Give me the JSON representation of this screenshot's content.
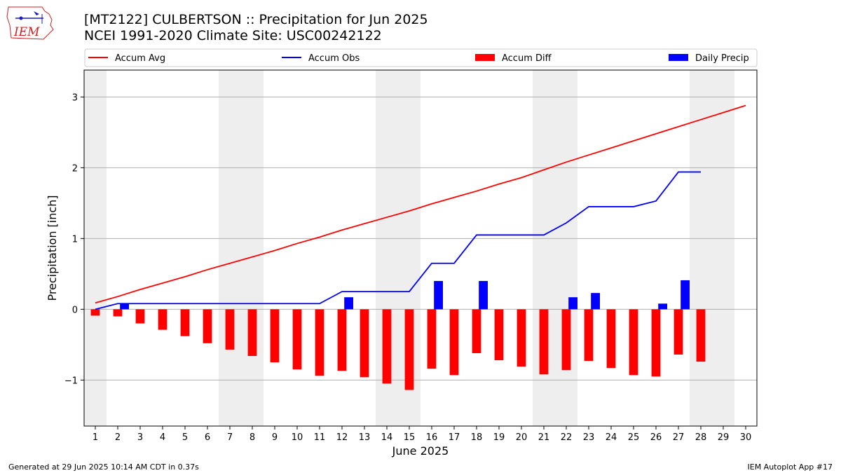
{
  "header": {
    "title_line1": "[MT2122] CULBERTSON :: Precipitation for Jun 2025",
    "title_line2": "NCEI 1991-2020 Climate Site: USC00242122",
    "logo_text": "IEM"
  },
  "footer": {
    "left": "Generated at 29 Jun 2025 10:14 AM CDT in 0.37s",
    "right": "IEM Autoplot App #17"
  },
  "colors": {
    "accum_avg": "#ff0000",
    "accum_obs": "#0000ff",
    "accum_diff": "#ff0000",
    "daily_precip": "#0000ff",
    "weekend_shade": "#eeeeee",
    "grid": "#b0b0b0",
    "logo": "#cc2222"
  },
  "chart_data": {
    "type": "bar",
    "xlabel": "June 2025",
    "ylabel": "Precipitation [inch]",
    "xlim": [
      0.5,
      30.5
    ],
    "ylim": [
      -1.65,
      3.38
    ],
    "xticks": [
      1,
      2,
      3,
      4,
      5,
      6,
      7,
      8,
      9,
      10,
      11,
      12,
      13,
      14,
      15,
      16,
      17,
      18,
      19,
      20,
      21,
      22,
      23,
      24,
      25,
      26,
      27,
      28,
      29,
      30
    ],
    "yticks": [
      -1,
      0,
      1,
      2,
      3
    ],
    "grid": "horizontal",
    "legend_placement": "top",
    "weekend_days": [
      1,
      7,
      8,
      14,
      15,
      21,
      22,
      28,
      29
    ],
    "series": [
      {
        "name": "Accum Avg",
        "kind": "line",
        "days": [
          1,
          2,
          3,
          4,
          5,
          6,
          7,
          8,
          9,
          10,
          11,
          12,
          13,
          14,
          15,
          16,
          17,
          18,
          19,
          20,
          21,
          22,
          23,
          24,
          25,
          26,
          27,
          28,
          29,
          30
        ],
        "values": [
          0.09,
          0.18,
          0.28,
          0.37,
          0.46,
          0.56,
          0.65,
          0.74,
          0.83,
          0.93,
          1.02,
          1.12,
          1.21,
          1.3,
          1.39,
          1.49,
          1.58,
          1.67,
          1.77,
          1.86,
          1.97,
          2.08,
          2.18,
          2.28,
          2.38,
          2.48,
          2.58,
          2.68,
          2.78,
          2.88
        ]
      },
      {
        "name": "Accum Obs",
        "kind": "line",
        "days": [
          1,
          2,
          3,
          4,
          5,
          6,
          7,
          8,
          9,
          10,
          11,
          12,
          13,
          14,
          15,
          16,
          17,
          18,
          19,
          20,
          21,
          22,
          23,
          24,
          25,
          26,
          27,
          28
        ],
        "values": [
          0.0,
          0.08,
          0.08,
          0.08,
          0.08,
          0.08,
          0.08,
          0.08,
          0.08,
          0.08,
          0.08,
          0.25,
          0.25,
          0.25,
          0.25,
          0.65,
          0.65,
          1.05,
          1.05,
          1.05,
          1.05,
          1.22,
          1.45,
          1.45,
          1.45,
          1.53,
          1.94,
          1.94
        ]
      },
      {
        "name": "Accum Diff",
        "kind": "bar",
        "days": [
          1,
          2,
          3,
          4,
          5,
          6,
          7,
          8,
          9,
          10,
          11,
          12,
          13,
          14,
          15,
          16,
          17,
          18,
          19,
          20,
          21,
          22,
          23,
          24,
          25,
          26,
          27,
          28
        ],
        "values": [
          -0.09,
          -0.1,
          -0.2,
          -0.29,
          -0.38,
          -0.48,
          -0.57,
          -0.66,
          -0.75,
          -0.85,
          -0.94,
          -0.87,
          -0.96,
          -1.05,
          -1.14,
          -0.84,
          -0.93,
          -0.62,
          -0.72,
          -0.81,
          -0.92,
          -0.86,
          -0.73,
          -0.83,
          -0.93,
          -0.95,
          -0.64,
          -0.74
        ]
      },
      {
        "name": "Daily Precip",
        "kind": "bar",
        "days": [
          1,
          2,
          3,
          4,
          5,
          6,
          7,
          8,
          9,
          10,
          11,
          12,
          13,
          14,
          15,
          16,
          17,
          18,
          19,
          20,
          21,
          22,
          23,
          24,
          25,
          26,
          27,
          28
        ],
        "values": [
          0,
          0.08,
          0,
          0,
          0,
          0,
          0,
          0,
          0,
          0,
          0,
          0.17,
          0,
          0,
          0,
          0.4,
          0,
          0.4,
          0,
          0,
          0,
          0.17,
          0.23,
          0,
          0,
          0.08,
          0.41,
          0
        ]
      }
    ]
  }
}
